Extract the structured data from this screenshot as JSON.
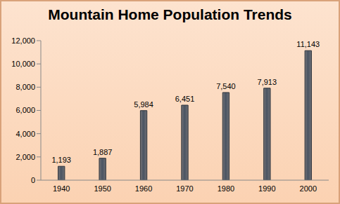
{
  "chart_data": {
    "type": "bar",
    "title": "Mountain Home Population Trends",
    "categories": [
      "1940",
      "1950",
      "1960",
      "1970",
      "1980",
      "1990",
      "2000"
    ],
    "values": [
      1193,
      1887,
      5984,
      6451,
      7540,
      7913,
      11143
    ],
    "value_labels": [
      "1,193",
      "1,887",
      "5,984",
      "6,451",
      "7,540",
      "7,913",
      "11,143"
    ],
    "color": "#4a5462",
    "ylim": [
      0,
      12000
    ],
    "yticks": [
      0,
      {
        "value": 2000,
        "label": "2,000"
      },
      {
        "value": 4000,
        "label": "4,000"
      },
      {
        "value": 6000,
        "label": "6,000"
      },
      {
        "value": 8000,
        "label": "8,000"
      },
      {
        "value": 10000,
        "label": "10,000"
      },
      {
        "value": 12000,
        "label": "12,000"
      }
    ],
    "grid": false,
    "data_labels": true
  }
}
